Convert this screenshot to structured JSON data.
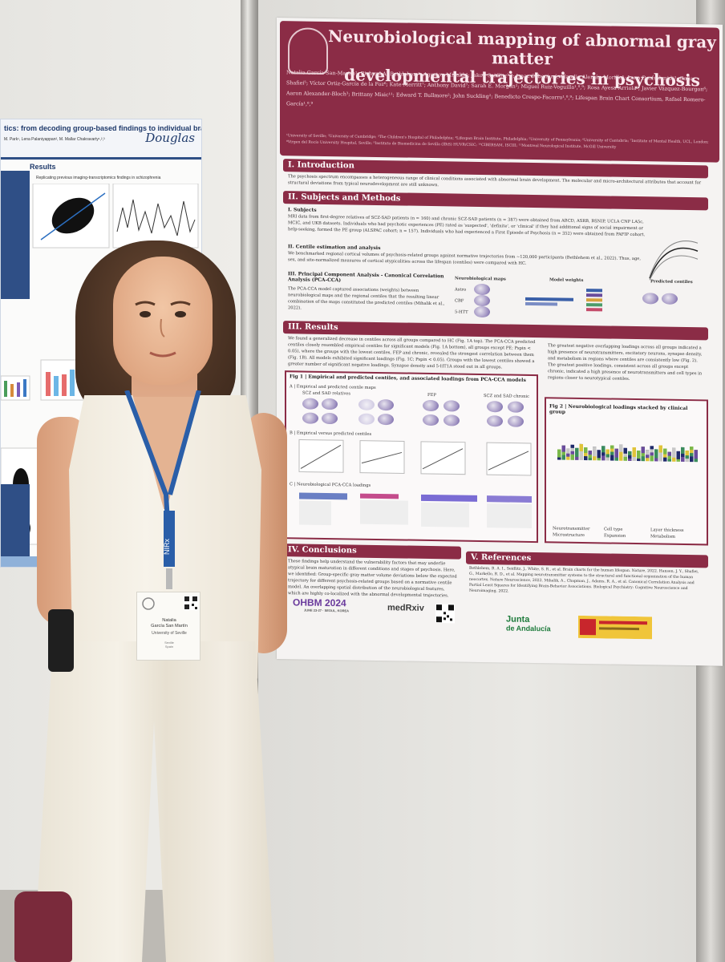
{
  "left_poster": {
    "title": "tics: from decoding group-based findings to individual brains",
    "authors": "M. Park¹, Lena Palaniyappan², M. Mallar Chakravarty¹,²,³",
    "logo": "Douglas",
    "results_heading": "Results",
    "results_sub": "Replicating previous imaging-transcriptomics findings in schizophrenia"
  },
  "poster": {
    "title_line1": "Neurobiological mapping of abnormal gray matter",
    "title_line2": "developmental trajectories in psychosis",
    "authors": "Natalia García-San-Martín¹; Richard AI Bethlehem²; Agoston Mihalik²; Jakob Seidlitz³,⁴; Isaac Sebenius²; Claudio Alemán-Morillo⁵; Lena Dorfschmidt³; Gulia Shafiei⁵; Víctor Ortiz-García de la Foz⁶; Kate Merritt⁷; Anthony David⁷; Sarah E. Morgan²; Miguel Ruiz-Veguilla¹,⁸,⁹; Rosa Ayesa-Arriola⁶; Javier Vázquez-Bourgon⁶; Aaron Alexander-Bloch³; Brittany Misic¹¹; Edward T. Bullmore²; John Suckling²; Benedicto Crespo-Facorro¹,⁸,⁹; Lifespan Brain Chart Consortium, Rafael Romero-García¹,⁸,⁹",
    "affiliations": "¹University of Seville; ²University of Cambridge; ³The Children's Hospital of Philadelphia; ⁴Lifespan Brain Institute, Philadelphia; ⁵University of Pennsylvania; ⁶University of Cantabria; ⁷Institute of Mental Health, UCL, London; ⁸Virgen del Rocío University Hospital, Seville; ⁹Instituto de Biomedicina de Sevilla (IBiS) HUVR/CSIC; ¹⁰CIBERSAM, ISCIII; ¹¹Montreal Neurological Institute, McGill University",
    "sections": {
      "intro": "I. Introduction",
      "intro_text": "The psychosis spectrum encompasses a heterogeneous range of clinical conditions associated with abnormal brain development. The molecular and micro-architectural attributes that account for structural deviations from typical neurodevelopment are still unknown.",
      "subjects": "II. Subjects and Methods",
      "sub1": "I. Subjects",
      "sub1_text": "MRI data from first-degree relatives of SCZ-SAD patients (n = 160) and chronic SCZ-SAD patients (n = 387) were obtained from ABCD, ASRB, BSNIP, UCLA CNP LA5c, MCIC, and UKB datasets. Individuals who had psychotic experiences (PE) rated as 'suspected', 'definite', or 'clinical' if they had additional signs of social impairment or help-seeking, formed the PE group (ALSPAC cohort; n = 157). Individuals who had experienced a First Episode of Psychosis (n = 352) were obtained from PAFIP cohort.",
      "sub2": "II. Centile estimation and analysis",
      "sub2_text": "We benchmarked regional cortical volumes of psychosis-related groups against normative trajectories from ~120,000 participants (Bethlehem et al., 2022). Thus, age, sex, and site-normalized measures of cortical atypicalities across the lifespan (centiles) were compared with HC.",
      "sub3": "III. Principal Component Analysis - Canonical Correlation Analysis (PCA-CCA)",
      "sub3_text": "The PCA-CCA model captured associations (weights) between neurobiological maps and the regional centiles that the resulting linear combination of the maps constituted the predicted centiles (Mihalik et al., 2022).",
      "nm_label": "Neurobiological maps",
      "mw_label": "Model weights",
      "pc_label": "Predicted centiles",
      "maps": [
        "Astro",
        "CBF",
        "5-HTT"
      ],
      "results": "III. Results",
      "results_text": "We found a generalized decrease in centiles across all groups compared to HC (Fig. 1A top). The PCA-CCA predicted centiles closely resembled empirical centiles for significant models (Fig. 1A bottom), all groups except PE; Pspin < 0.05), where the groups with the lowest centiles, FEP and chronic, revealed the strongest correlation between them (Fig. 1B). All models exhibited significant loadings (Fig. 1C; Pspin < 0.05). Groups with the lowest centiles showed a greater number of significant negative loadings. Synapse density and 5-HT1A stood out in all groups.",
      "results_right": "The greatest negative overlapping loadings across all groups indicated a high presence of neurotransmitters, excitatory neurons, synapse density, and metabolism in regions where centiles are consistently low (Fig. 2). The greatest positive loadings, consistent across all groups except chronic, indicated a high presence of neurotransmitters and cell types in regions closer to neurotypical centiles.",
      "fig1": "Fig 1 | Empirical and predicted centiles, and associated loadings from PCA-CCA models",
      "fig1a": "A | Empirical and predicted centile maps",
      "fig1b": "B | Empirical versus predicted centiles",
      "fig1c": "C | Neurobiological PCA-CCA loadings",
      "groups": [
        "SCZ and SAD relatives",
        "FEP",
        "SCZ and SAD chronic"
      ],
      "fig2": "Fig 2 | Neurobiological loadings stacked by clinical group",
      "fig2_legend": [
        "Neurotransmitter",
        "Cell type",
        "Layer thickness",
        "Microstructure",
        "Expansion",
        "Metabolism"
      ],
      "conclusions": "IV. Conclusions",
      "conclusions_text": "These findings help understand the vulnerability factors that may underlie atypical brain maturation in different conditions and stages of psychosis. Here, we identified: Group-specific gray matter volume deviations below the expected trajectory for different psychosis-related groups based on a normative centile model. An overlapping spatial distribution of the neurobiological features, which are highly co-localized with the abnormal developmental trajectories.",
      "references": "V. References",
      "references_text": "Bethlehem, R. A. I., Seidlitz, J., White, S. R., et al. Brain charts for the human lifespan. Nature, 2022. Hansen, J. Y., Shafiei, G., Markello, R. D., et al. Mapping neurotransmitter systems to the structural and functional organization of the human neocortex. Nature Neuroscience, 2022. Mihalik, A., Chapman, J., Adams, R. A., et al. Canonical Correlation Analysis and Partial Least Squares for Identifying Brain-Behavior Associations. Biological Psychiatry: Cognitive Neuroscience and Neuroimaging, 2022."
    },
    "logos": {
      "ohbm": "OHBM 2024",
      "ohbm_sub": "JUNE 23-27 · SEOUL, KOREA",
      "medrxiv": "medRxiv",
      "junta1": "Junta",
      "junta2": "de Andalucía"
    }
  },
  "badge": {
    "name1": "Natalia",
    "name2": "García San Martín",
    "uni": "University of Seville",
    "city": "Seville",
    "country": "Spain"
  },
  "lanyard_text": "NIRx"
}
